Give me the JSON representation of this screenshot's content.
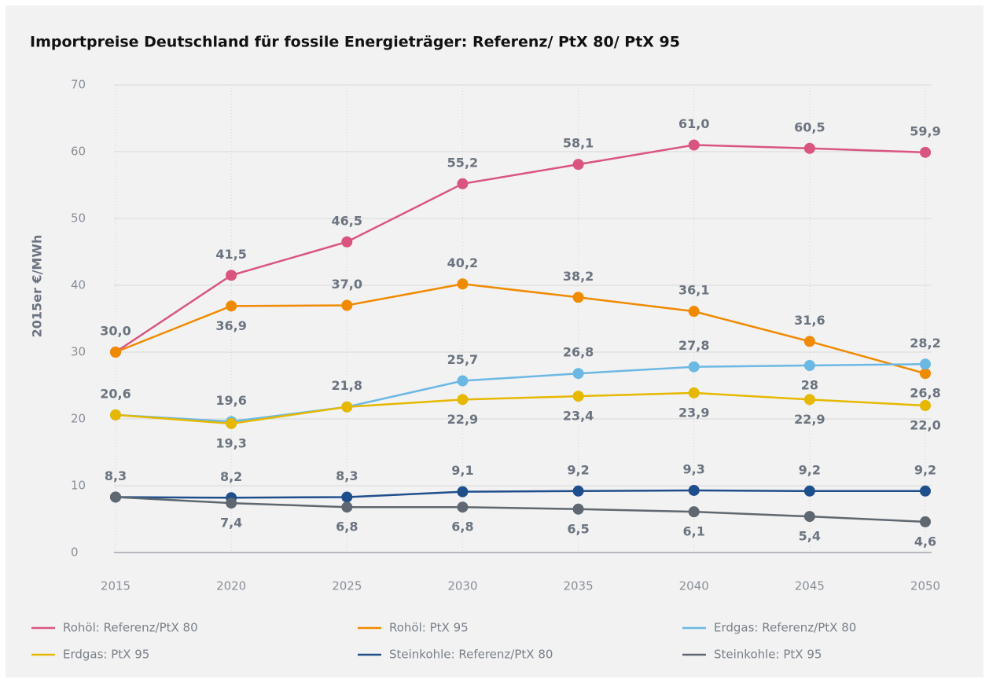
{
  "chart_data": {
    "type": "line",
    "title": "Importpreise Deutschland für fossile Energieträger: Referenz/ PtX 80/ PtX 95",
    "ylabel": "2015er €/MWh",
    "categories": [
      "2015",
      "2020",
      "2025",
      "2030",
      "2035",
      "2040",
      "2045",
      "2050"
    ],
    "ylim": [
      0,
      70
    ],
    "yticks": [
      0,
      10,
      20,
      30,
      40,
      50,
      60,
      70
    ],
    "grid": true,
    "series": [
      {
        "name": "Rohöl: Referenz/PtX 80",
        "color": "#d9557f",
        "values": [
          30.0,
          41.5,
          46.5,
          55.2,
          58.1,
          61.0,
          60.5,
          59.9
        ],
        "value_labels": [
          "30,0",
          "41,5",
          "46,5",
          "55,2",
          "58,1",
          "61,0",
          "60,5",
          "59,9"
        ]
      },
      {
        "name": "Rohöl: PtX 95",
        "color": "#f08a00",
        "values": [
          30.0,
          36.9,
          37.0,
          40.2,
          38.2,
          36.1,
          31.6,
          26.8
        ],
        "value_labels": [
          null,
          "36,9",
          "37,0",
          "40,2",
          "38,2",
          "36,1",
          "31,6",
          "26,8"
        ]
      },
      {
        "name": "Erdgas: Referenz/PtX 80",
        "color": "#6cb8e4",
        "values": [
          20.6,
          19.6,
          21.8,
          25.7,
          26.8,
          27.8,
          28,
          28.2
        ],
        "value_labels": [
          "20,6",
          "19,6",
          "21,8",
          "25,7",
          "26,8",
          "27,8",
          "28",
          "28,2"
        ]
      },
      {
        "name": "Erdgas: PtX 95",
        "color": "#e6b800",
        "values": [
          20.6,
          19.3,
          21.8,
          22.9,
          23.4,
          23.9,
          22.9,
          22.0
        ],
        "value_labels": [
          null,
          "19,3",
          null,
          "22,9",
          "23,4",
          "23,9",
          "22,9",
          "22,0"
        ]
      },
      {
        "name": "Steinkohle: Referenz/PtX 80",
        "color": "#1f4e8c",
        "values": [
          8.3,
          8.2,
          8.3,
          9.1,
          9.2,
          9.3,
          9.2,
          9.2
        ],
        "value_labels": [
          "8,3",
          "8,2",
          "8,3",
          "9,1",
          "9,2",
          "9,3",
          "9,2",
          "9,2"
        ]
      },
      {
        "name": "Steinkohle: PtX 95",
        "color": "#5f6770",
        "values": [
          8.3,
          7.4,
          6.8,
          6.8,
          6.5,
          6.1,
          5.4,
          4.6
        ],
        "value_labels": [
          null,
          "7,4",
          "6,8",
          "6,8",
          "6,5",
          "6,1",
          "5,4",
          "4,6"
        ]
      }
    ]
  }
}
